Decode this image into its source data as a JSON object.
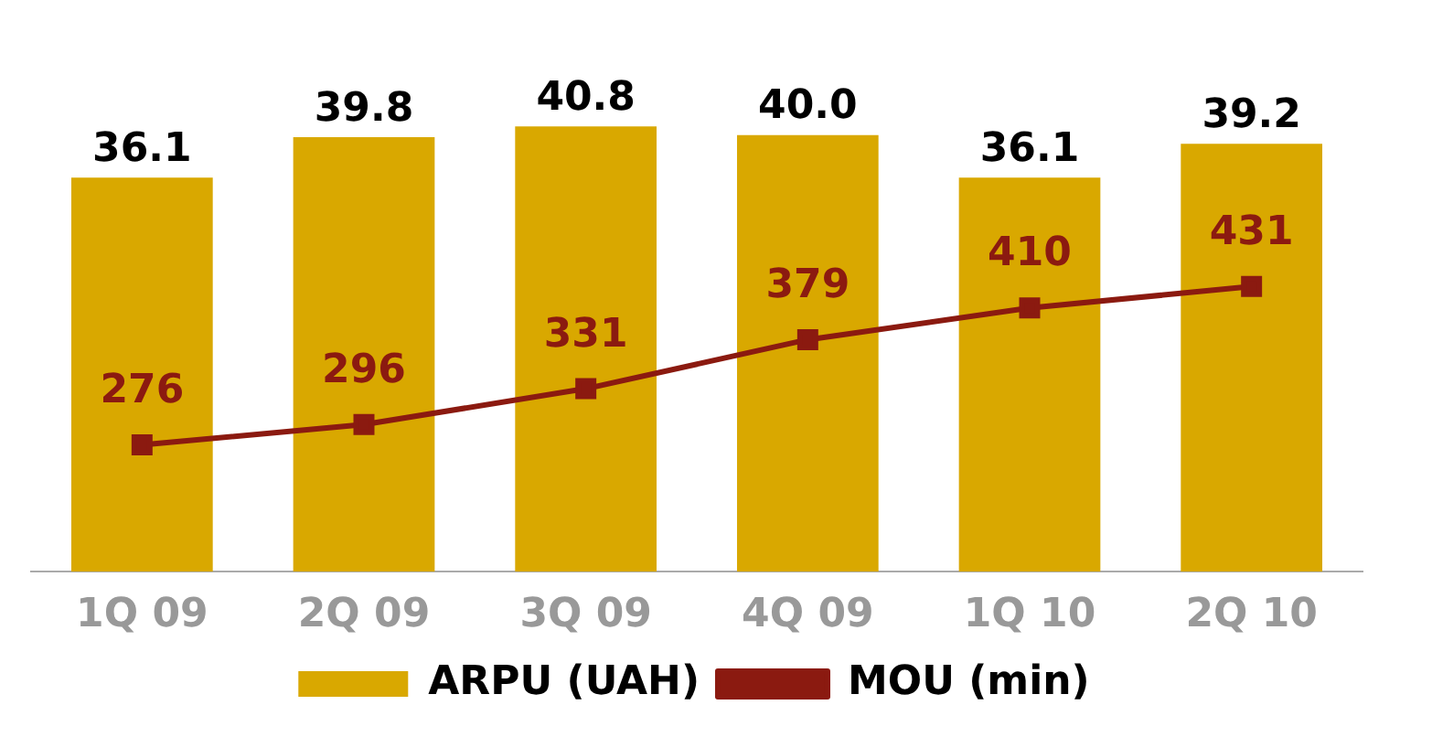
{
  "chart_data": {
    "type": "bar",
    "categories": [
      "1Q 09",
      "2Q 09",
      "3Q 09",
      "4Q 09",
      "1Q 10",
      "2Q 10"
    ],
    "series": [
      {
        "name": "ARPU (UAH)",
        "color": "#d9a800",
        "values": [
          36.1,
          39.8,
          40.8,
          40.0,
          36.1,
          39.2
        ],
        "value_labels": [
          "36.1",
          "39.8",
          "40.8",
          "40.0",
          "36.1",
          "39.2"
        ]
      },
      {
        "name": "MOU (min)",
        "type": "line",
        "axis": "y2",
        "color": "#8b1a10",
        "values": [
          276,
          296,
          331,
          379,
          410,
          431
        ]
      }
    ],
    "data_labels": true,
    "legend": "bottom",
    "grid": false,
    "tick_labels": "x",
    "marker": "square"
  }
}
